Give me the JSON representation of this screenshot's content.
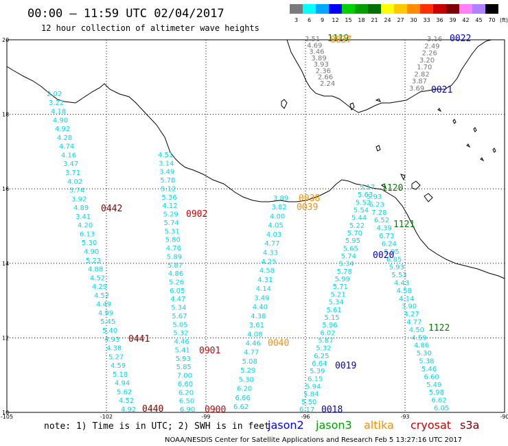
{
  "title": "00:00 – 11:59 UTC 02/04/2017",
  "subtitle": "12 hour collection of altimeter wave heights",
  "colorbar": {
    "labels": [
      "3",
      "6",
      "9",
      "12",
      "15",
      "18",
      "21",
      "24",
      "27",
      "30",
      "33",
      "36",
      "39",
      "42",
      "45",
      "70"
    ],
    "unit": "(ft)",
    "colors": [
      "#7a7a7a",
      "#00ffff",
      "#00a8ff",
      "#0000ff",
      "#00d000",
      "#00a000",
      "#007000",
      "#ffff00",
      "#ffc800",
      "#ff8c00",
      "#ff3000",
      "#c80000",
      "#800000",
      "#ff80ff",
      "#b080ff",
      "#000000"
    ]
  },
  "axes": {
    "lon_labels": [
      "-105",
      "-102",
      "-99",
      "-96",
      "-93",
      "-90"
    ],
    "lat_labels": [
      "20",
      "18",
      "16",
      "14",
      "12",
      "10"
    ]
  },
  "passes": [
    {
      "id": "jason2_0018",
      "color": "#0000cc",
      "time_labels": [
        {
          "text": "0018"
        },
        {
          "text": "0019"
        },
        {
          "text": "0020"
        },
        {
          "text": "0021"
        },
        {
          "text": "0022"
        }
      ]
    },
    {
      "id": "jason3",
      "color": "#008000",
      "time_labels": [
        {
          "text": "1119"
        },
        {
          "text": "1120"
        },
        {
          "text": "1121"
        },
        {
          "text": "1122"
        }
      ]
    },
    {
      "id": "altika",
      "color": "#ff8c00",
      "time_labels": [
        {
          "text": "0037"
        },
        {
          "text": "0038"
        },
        {
          "text": "0039"
        },
        {
          "text": "0040"
        }
      ]
    },
    {
      "id": "cryosat",
      "color": "#cc0000",
      "time_labels": [
        {
          "text": "0900"
        },
        {
          "text": "0901"
        },
        {
          "text": "0902"
        }
      ]
    },
    {
      "id": "s3a",
      "color": "#800000",
      "time_labels": [
        {
          "text": "0440"
        },
        {
          "text": "0441"
        },
        {
          "text": "0442"
        }
      ]
    }
  ],
  "tracks": {
    "t1": [
      "2.02",
      "3.22",
      "4.18",
      "4.90",
      "4.92",
      "4.28",
      "4.74",
      "4.16",
      "3.47",
      "3.71",
      "4.02",
      "3.74",
      "3.92",
      "4.89",
      "3.41",
      "4.20",
      "6.13",
      "5.30",
      "4.90",
      "5.23",
      "4.88",
      "4.52",
      "4.29",
      "4.52",
      "4.49",
      "4.99",
      "5.45",
      "5.40",
      "4.93",
      "4.38",
      "5.27",
      "4.59",
      "5.18",
      "4.94",
      "5.62",
      "4.52",
      "4.92"
    ],
    "t2": [
      "4.51",
      "3.14",
      "3.49",
      "5.78",
      "5.12",
      "5.36",
      "4.12",
      "5.29",
      "5.74",
      "5.31",
      "5.80",
      "4.76",
      "5.89",
      "5.87",
      "4.86",
      "5.26",
      "6.05",
      "4.47",
      "5.34",
      "5.67",
      "5.05",
      "5.32",
      "4.46",
      "5.41",
      "5.93",
      "5.85",
      "7.00",
      "6.60",
      "6.20",
      "6.50",
      "6.90"
    ],
    "t3": [
      "3.89",
      "3.82",
      "4.00",
      "4.05",
      "4.03",
      "4.77",
      "4.33",
      "4.25",
      "4.58",
      "4.31",
      "4.14",
      "3.49",
      "4.40",
      "4.38",
      "3.61",
      "4.08",
      "4.46",
      "4.77",
      "5.08",
      "5.29",
      "5.30",
      "6.20",
      "6.66",
      "6.62"
    ],
    "t4": [
      "5.17",
      "5.63",
      "5.52",
      "5.54",
      "5.44",
      "5.22",
      "5.70",
      "5.95",
      "5.65",
      "5.74",
      "5.34",
      "5.78",
      "5.99",
      "5.71",
      "5.21",
      "5.34",
      "5.61",
      "5.15",
      "5.96",
      "6.02",
      "5.87",
      "5.32",
      "6.25",
      "6.64",
      "5.39",
      "6.15",
      "5.94",
      "5.84",
      "5.50",
      "6.17"
    ],
    "t5": [
      "5.93",
      "6.23",
      "7.28",
      "6.52",
      "4.39",
      "6.73",
      "6.24",
      "5.95",
      "6.85",
      "5.93",
      "5.53",
      "4.43",
      "4.58",
      "4.14",
      "3.90",
      "4.27",
      "4.77",
      "4.50",
      "4.59",
      "4.86",
      "5.30",
      "5.38",
      "5.46",
      "6.60",
      "5.49",
      "5.98",
      "6.62",
      "6.05"
    ],
    "north_gray": [
      "2.51",
      "4.69",
      "3.46",
      "3.89",
      "3.93",
      "2.36",
      "2.66",
      "2.24"
    ],
    "north_right": [
      "3.16",
      "2.49",
      "2.26",
      "3.20",
      "1.70",
      "2.82",
      "3.87",
      "3.69"
    ]
  },
  "legend": {
    "note": "note: 1) Time is in UTC; 2) SWH is in feet",
    "sats": [
      {
        "name": "jason2",
        "color": "#0000ff"
      },
      {
        "name": "jason3",
        "color": "#00a000"
      },
      {
        "name": "altika",
        "color": "#ff8c00"
      },
      {
        "name": "cryosat",
        "color": "#cc0000"
      },
      {
        "name": "s3a",
        "color": "#800000"
      }
    ]
  },
  "credit": "NOAA/NESDIS Center for Satellite Applications and Research   Feb  5 13:27:16 UTC 2017",
  "colors": {
    "swh": "#00d8e8",
    "gray": "#777777"
  }
}
